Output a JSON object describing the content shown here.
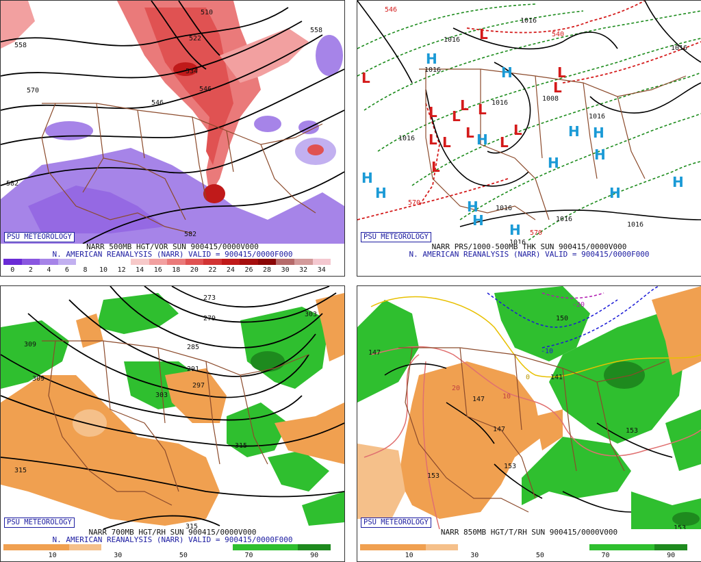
{
  "panels": [
    {
      "id": "p1",
      "badge": "PSU METEOROLOGY",
      "caption_line1": "NARR 500MB HGT/VOR SUN 900415/0000V000",
      "caption_line2": "N. AMERICAN REANALYSIS (NARR) VALID = 900415/0000F000",
      "colorbar": [
        "#6a2bd6",
        "#8a57e0",
        "#a684e8",
        "#c2b0f0",
        "#ffffff",
        "#ffffff",
        "#ffffff",
        "#f7c9c9",
        "#f2a0a0",
        "#ea7a7a",
        "#e05252",
        "#d23434",
        "#c01a1a",
        "#a50e0e",
        "#8a0606",
        "#b56a6a",
        "#d39a9a",
        "#f4c8d0"
      ],
      "ticks": [
        "0",
        "2",
        "4",
        "6",
        "8",
        "10",
        "12",
        "14",
        "16",
        "18",
        "20",
        "22",
        "24",
        "26",
        "28",
        "30",
        "32",
        "34"
      ],
      "contour_labels": [
        "510",
        "522",
        "534",
        "546",
        "558",
        "570",
        "582",
        "558",
        "582",
        "546"
      ]
    },
    {
      "id": "p2",
      "badge": "PSU METEOROLOGY",
      "caption_line1": "NARR PRS/1000-500MB THK SUN 900415/0000V000",
      "caption_line2": "N. AMERICAN REANALYSIS (NARR) VALID = 900415/0000F000",
      "pressure_labels": [
        "1016",
        "1016",
        "1016",
        "1008",
        "1016",
        "1016",
        "1016",
        "1016",
        "1016",
        "1016",
        "1016",
        "1016"
      ],
      "thickness_labels": [
        "540",
        "570",
        "570",
        "546"
      ],
      "highs": "H",
      "lows": "L"
    },
    {
      "id": "p3",
      "badge": "PSU METEOROLOGY",
      "caption_line1": "NARR 700MB HGT/RH SUN 900415/0000V000",
      "caption_line2": "N. AMERICAN REANALYSIS (NARR) VALID = 900415/0000F000",
      "colorbar": [
        "#f0a050",
        "#f0a050",
        "#f5c08a",
        "#ffffff",
        "#ffffff",
        "#ffffff",
        "#ffffff",
        "#2fbf2f",
        "#2fbf2f",
        "#1e8a1e"
      ],
      "ticks": [
        "10",
        "30",
        "50",
        "70",
        "90"
      ],
      "contour_labels": [
        "273",
        "279",
        "285",
        "291",
        "297",
        "303",
        "303",
        "309",
        "309",
        "315",
        "315",
        "315"
      ]
    },
    {
      "id": "p4",
      "badge": "PSU METEOROLOGY",
      "caption_line1": "NARR 850MB HGT/T/RH SUN 900415/0000V000",
      "colorbar": [
        "#f0a050",
        "#f0a050",
        "#f5c08a",
        "#ffffff",
        "#ffffff",
        "#ffffff",
        "#ffffff",
        "#2fbf2f",
        "#2fbf2f",
        "#1e8a1e"
      ],
      "ticks": [
        "10",
        "30",
        "50",
        "70",
        "90"
      ],
      "contour_labels": [
        "147",
        "147",
        "147",
        "153",
        "153",
        "153",
        "150",
        "141",
        "153"
      ],
      "temp_labels": [
        "-20",
        "-10",
        "0",
        "10",
        "20"
      ]
    }
  ]
}
